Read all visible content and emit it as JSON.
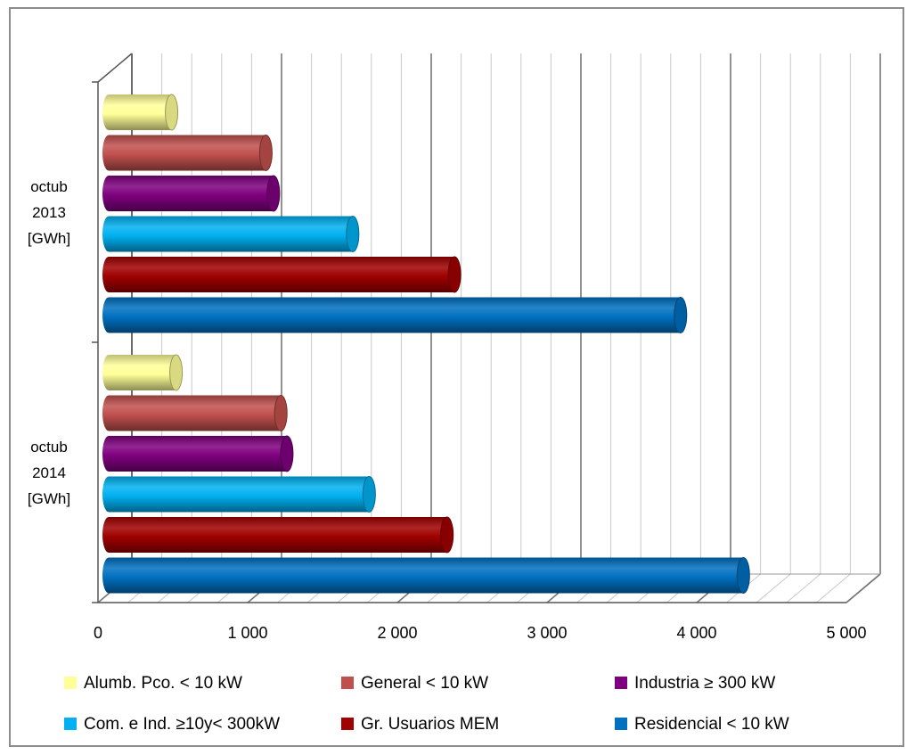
{
  "chart_data": {
    "type": "bar",
    "orientation": "horizontal",
    "style": "3d-cylinder",
    "categories": [
      [
        "octub",
        "2013",
        "[GWh]"
      ],
      [
        "octub",
        "2014",
        "[GWh]"
      ]
    ],
    "xlim": [
      0,
      5000
    ],
    "xticks": [
      0,
      1000,
      2000,
      3000,
      4000,
      5000
    ],
    "xtick_labels": [
      "0",
      "1 000",
      "2 000",
      "3 000",
      "4 000",
      "5 000"
    ],
    "grid": true,
    "legend_position": "bottom",
    "series": [
      {
        "name": "Alumb. Pco. < 10 kW",
        "color": "#ffff99",
        "values": [
          420,
          450
        ]
      },
      {
        "name": "General < 10 kW",
        "color": "#c0504d",
        "values": [
          1050,
          1150
        ]
      },
      {
        "name": "Industria ≥ 300 kW",
        "color": "#7f007f",
        "values": [
          1100,
          1190
        ]
      },
      {
        "name": "Com. e Ind. ≥10y< 300kW",
        "color": "#00b0f0",
        "values": [
          1630,
          1740
        ]
      },
      {
        "name": "Gr. Usuarios MEM",
        "color": "#a00000",
        "values": [
          2310,
          2260
        ]
      },
      {
        "name": "Residencial < 10 kW",
        "color": "#0070c0",
        "values": [
          3820,
          4240
        ]
      }
    ]
  }
}
